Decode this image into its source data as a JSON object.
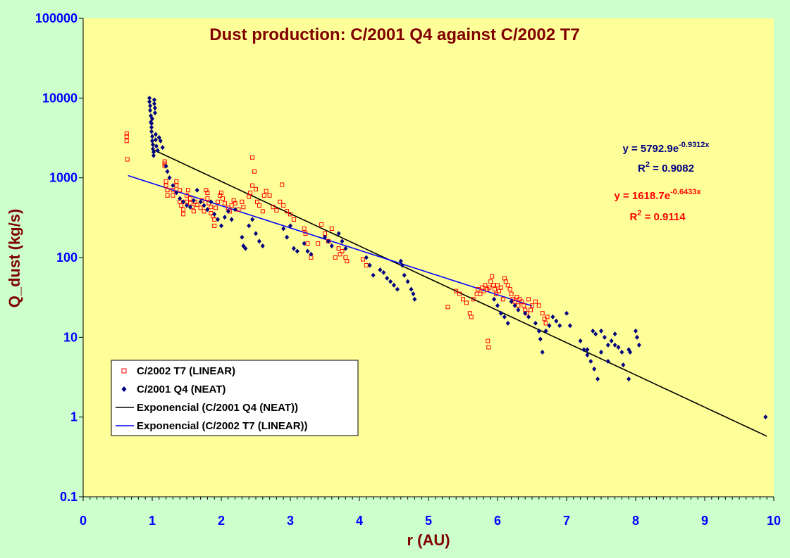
{
  "chart_data": {
    "type": "scatter",
    "title": "Dust production: C/2001 Q4 against C/2002 T7",
    "xlabel": "r (AU)",
    "ylabel": "Q_dust (kg/s)",
    "xlim": [
      0,
      10
    ],
    "ylim": [
      0.1,
      100000
    ],
    "y_scale": "log",
    "grid": false,
    "legend_position": "bottom-left",
    "x_ticks": [
      "0",
      "1",
      "2",
      "3",
      "4",
      "5",
      "6",
      "7",
      "8",
      "9",
      "10"
    ],
    "y_ticks": [
      "0.1",
      "1",
      "10",
      "100",
      "1000",
      "10000",
      "100000"
    ],
    "colors": {
      "background": "#ccffcc",
      "plot_area": "#ffff99",
      "title": "#800000",
      "axis_label": "#800000",
      "tick": "#0000ff",
      "series_t7": "#ff0000",
      "series_q4": "#000080",
      "fit_q4": "#000000",
      "fit_t7": "#0000ff"
    },
    "legend": [
      {
        "label": "C/2002 T7 (LINEAR)",
        "marker": "open-square",
        "color": "#ff0000"
      },
      {
        "label": "C/2001 Q4 (NEAT)",
        "marker": "diamond",
        "color": "#000080"
      },
      {
        "label": "Exponencial (C/2001 Q4 (NEAT))",
        "marker": "line",
        "color": "#000000"
      },
      {
        "label": "Exponencial (C/2002 T7 (LINEAR))",
        "marker": "line",
        "color": "#0000ff"
      }
    ],
    "annotations": [
      {
        "main": "y = 5792.9e",
        "exp": "-0.9312x",
        "r2_prefix": "R",
        "r2_sup": "2",
        "r2_value": " = 0.9082",
        "color": "#000080"
      },
      {
        "main": "y = 1618.7e",
        "exp": "-0.6433x",
        "r2_prefix": "R",
        "r2_sup": "2",
        "r2_value": " = 0.9114",
        "color": "#ff0000"
      }
    ],
    "trendlines": [
      {
        "name": "Exponencial (C/2001 Q4 (NEAT))",
        "a": 5792.9,
        "b": -0.9312,
        "x_range": [
          1.0,
          9.9
        ],
        "color": "#000000"
      },
      {
        "name": "Exponencial (C/2002 T7 (LINEAR))",
        "a": 1618.7,
        "b": -0.6433,
        "x_range": [
          0.65,
          6.5
        ],
        "color": "#0000ff"
      }
    ],
    "series": [
      {
        "name": "C/2002 T7 (LINEAR)",
        "marker": "open-square",
        "color": "#ff0000",
        "points": [
          [
            0.63,
            3600
          ],
          [
            0.63,
            3300
          ],
          [
            0.63,
            2900
          ],
          [
            0.64,
            1700
          ],
          [
            1.18,
            1600
          ],
          [
            1.18,
            1500
          ],
          [
            1.18,
            1400
          ],
          [
            1.2,
            900
          ],
          [
            1.2,
            800
          ],
          [
            1.22,
            700
          ],
          [
            1.22,
            600
          ],
          [
            1.3,
            600
          ],
          [
            1.3,
            700
          ],
          [
            1.35,
            800
          ],
          [
            1.35,
            900
          ],
          [
            1.4,
            700
          ],
          [
            1.4,
            500
          ],
          [
            1.42,
            450
          ],
          [
            1.45,
            400
          ],
          [
            1.45,
            350
          ],
          [
            1.5,
            500
          ],
          [
            1.5,
            600
          ],
          [
            1.52,
            700
          ],
          [
            1.55,
            550
          ],
          [
            1.55,
            480
          ],
          [
            1.58,
            430
          ],
          [
            1.6,
            380
          ],
          [
            1.62,
            500
          ],
          [
            1.65,
            460
          ],
          [
            1.7,
            420
          ],
          [
            1.72,
            520
          ],
          [
            1.75,
            380
          ],
          [
            1.78,
            700
          ],
          [
            1.8,
            650
          ],
          [
            1.8,
            550
          ],
          [
            1.82,
            480
          ],
          [
            1.85,
            430
          ],
          [
            1.85,
            360
          ],
          [
            1.88,
            330
          ],
          [
            1.9,
            300
          ],
          [
            1.9,
            250
          ],
          [
            1.92,
            420
          ],
          [
            1.95,
            500
          ],
          [
            1.98,
            600
          ],
          [
            2.0,
            650
          ],
          [
            2.02,
            550
          ],
          [
            2.05,
            480
          ],
          [
            2.1,
            420
          ],
          [
            2.12,
            380
          ],
          [
            2.15,
            450
          ],
          [
            2.18,
            520
          ],
          [
            2.2,
            480
          ],
          [
            2.25,
            400
          ],
          [
            2.3,
            500
          ],
          [
            2.32,
            430
          ],
          [
            2.4,
            580
          ],
          [
            2.42,
            650
          ],
          [
            2.45,
            800
          ],
          [
            2.45,
            1800
          ],
          [
            2.48,
            1200
          ],
          [
            2.5,
            720
          ],
          [
            2.52,
            500
          ],
          [
            2.55,
            450
          ],
          [
            2.6,
            380
          ],
          [
            2.62,
            600
          ],
          [
            2.65,
            680
          ],
          [
            2.7,
            600
          ],
          [
            2.75,
            430
          ],
          [
            2.8,
            390
          ],
          [
            2.85,
            500
          ],
          [
            2.88,
            820
          ],
          [
            2.9,
            450
          ],
          [
            2.95,
            380
          ],
          [
            3.0,
            350
          ],
          [
            3.05,
            300
          ],
          [
            3.2,
            230
          ],
          [
            3.22,
            200
          ],
          [
            3.25,
            150
          ],
          [
            3.3,
            100
          ],
          [
            3.4,
            150
          ],
          [
            3.45,
            260
          ],
          [
            3.5,
            200
          ],
          [
            3.55,
            160
          ],
          [
            3.6,
            230
          ],
          [
            3.65,
            100
          ],
          [
            3.7,
            130
          ],
          [
            3.72,
            110
          ],
          [
            3.75,
            120
          ],
          [
            3.8,
            100
          ],
          [
            3.82,
            90
          ],
          [
            4.05,
            95
          ],
          [
            4.1,
            80
          ],
          [
            5.28,
            24
          ],
          [
            5.4,
            38
          ],
          [
            5.45,
            35
          ],
          [
            5.5,
            30
          ],
          [
            5.55,
            27
          ],
          [
            5.6,
            20
          ],
          [
            5.62,
            18
          ],
          [
            5.65,
            30
          ],
          [
            5.7,
            35
          ],
          [
            5.72,
            40
          ],
          [
            5.75,
            35
          ],
          [
            5.78,
            42
          ],
          [
            5.8,
            38
          ],
          [
            5.82,
            45
          ],
          [
            5.85,
            40
          ],
          [
            5.86,
            9
          ],
          [
            5.87,
            7.5
          ],
          [
            5.88,
            42
          ],
          [
            5.9,
            50
          ],
          [
            5.92,
            58
          ],
          [
            5.94,
            45
          ],
          [
            5.96,
            40
          ],
          [
            5.98,
            35
          ],
          [
            6.0,
            45
          ],
          [
            6.02,
            38
          ],
          [
            6.05,
            42
          ],
          [
            6.08,
            30
          ],
          [
            6.1,
            55
          ],
          [
            6.12,
            50
          ],
          [
            6.15,
            45
          ],
          [
            6.18,
            40
          ],
          [
            6.2,
            35
          ],
          [
            6.22,
            30
          ],
          [
            6.25,
            28
          ],
          [
            6.28,
            32
          ],
          [
            6.3,
            25
          ],
          [
            6.32,
            30
          ],
          [
            6.35,
            28
          ],
          [
            6.38,
            25
          ],
          [
            6.4,
            22
          ],
          [
            6.42,
            20
          ],
          [
            6.45,
            30
          ],
          [
            6.48,
            22
          ],
          [
            6.5,
            25
          ],
          [
            6.55,
            28
          ],
          [
            6.6,
            25
          ],
          [
            6.65,
            20
          ],
          [
            6.68,
            17
          ],
          [
            6.7,
            15
          ],
          [
            6.72,
            18
          ]
        ]
      },
      {
        "name": "C/2001 Q4 (NEAT)",
        "marker": "diamond",
        "color": "#000080",
        "points": [
          [
            0.96,
            10000
          ],
          [
            0.96,
            9000
          ],
          [
            0.97,
            8000
          ],
          [
            0.97,
            7000
          ],
          [
            0.98,
            6000
          ],
          [
            0.98,
            5000
          ],
          [
            0.99,
            4300
          ],
          [
            0.99,
            3800
          ],
          [
            1.0,
            3300
          ],
          [
            1.0,
            2900
          ],
          [
            1.01,
            2600
          ],
          [
            1.01,
            2300
          ],
          [
            1.02,
            2100
          ],
          [
            1.02,
            1900
          ],
          [
            1.03,
            9500
          ],
          [
            1.03,
            8500
          ],
          [
            1.04,
            7500
          ],
          [
            1.04,
            6500
          ],
          [
            1.0,
            5500
          ],
          [
            0.99,
            4800
          ],
          [
            1.05,
            3500
          ],
          [
            1.05,
            3000
          ],
          [
            1.06,
            2500
          ],
          [
            1.08,
            2200
          ],
          [
            1.1,
            3200
          ],
          [
            1.12,
            2900
          ],
          [
            1.15,
            2400
          ],
          [
            1.2,
            1400
          ],
          [
            1.22,
            1200
          ],
          [
            1.25,
            1000
          ],
          [
            1.3,
            800
          ],
          [
            1.35,
            650
          ],
          [
            1.4,
            550
          ],
          [
            1.45,
            500
          ],
          [
            1.5,
            450
          ],
          [
            1.55,
            430
          ],
          [
            1.6,
            520
          ],
          [
            1.65,
            700
          ],
          [
            1.7,
            500
          ],
          [
            1.75,
            450
          ],
          [
            1.8,
            400
          ],
          [
            1.85,
            500
          ],
          [
            1.9,
            350
          ],
          [
            1.95,
            300
          ],
          [
            2.0,
            250
          ],
          [
            2.05,
            320
          ],
          [
            2.1,
            380
          ],
          [
            2.15,
            300
          ],
          [
            2.2,
            400
          ],
          [
            2.3,
            180
          ],
          [
            2.32,
            140
          ],
          [
            2.35,
            130
          ],
          [
            2.4,
            250
          ],
          [
            2.45,
            300
          ],
          [
            2.5,
            200
          ],
          [
            2.55,
            160
          ],
          [
            2.6,
            140
          ],
          [
            2.9,
            230
          ],
          [
            2.95,
            180
          ],
          [
            3.0,
            250
          ],
          [
            3.05,
            130
          ],
          [
            3.1,
            120
          ],
          [
            3.2,
            150
          ],
          [
            3.25,
            120
          ],
          [
            3.3,
            110
          ],
          [
            3.5,
            180
          ],
          [
            3.55,
            160
          ],
          [
            3.6,
            140
          ],
          [
            3.7,
            200
          ],
          [
            3.75,
            160
          ],
          [
            3.8,
            130
          ],
          [
            4.1,
            100
          ],
          [
            4.15,
            80
          ],
          [
            4.2,
            60
          ],
          [
            4.3,
            70
          ],
          [
            4.35,
            65
          ],
          [
            4.4,
            55
          ],
          [
            4.45,
            50
          ],
          [
            4.5,
            45
          ],
          [
            4.55,
            40
          ],
          [
            4.6,
            90
          ],
          [
            4.62,
            80
          ],
          [
            4.65,
            60
          ],
          [
            4.7,
            50
          ],
          [
            4.75,
            40
          ],
          [
            4.78,
            35
          ],
          [
            4.8,
            30
          ],
          [
            5.95,
            30
          ],
          [
            6.0,
            25
          ],
          [
            6.05,
            20
          ],
          [
            6.1,
            18
          ],
          [
            6.15,
            15
          ],
          [
            6.2,
            28
          ],
          [
            6.25,
            25
          ],
          [
            6.3,
            22
          ],
          [
            6.4,
            20
          ],
          [
            6.45,
            18
          ],
          [
            6.55,
            15
          ],
          [
            6.6,
            12
          ],
          [
            6.62,
            9.5
          ],
          [
            6.65,
            6.5
          ],
          [
            6.7,
            12
          ],
          [
            6.75,
            14
          ],
          [
            6.8,
            18
          ],
          [
            6.85,
            16
          ],
          [
            6.9,
            14
          ],
          [
            7.0,
            20
          ],
          [
            7.05,
            14
          ],
          [
            7.2,
            9
          ],
          [
            7.25,
            7
          ],
          [
            7.3,
            6
          ],
          [
            7.35,
            5
          ],
          [
            7.4,
            4
          ],
          [
            7.45,
            3
          ],
          [
            7.5,
            12
          ],
          [
            7.55,
            10
          ],
          [
            7.6,
            8
          ],
          [
            7.65,
            9
          ],
          [
            7.7,
            11
          ],
          [
            7.75,
            7.5
          ],
          [
            7.8,
            6.5
          ],
          [
            7.9,
            7
          ],
          [
            7.92,
            6.5
          ],
          [
            8.0,
            12
          ],
          [
            8.02,
            10
          ],
          [
            8.05,
            8
          ],
          [
            7.3,
            7
          ],
          [
            7.38,
            12
          ],
          [
            7.42,
            11
          ],
          [
            7.5,
            6.5
          ],
          [
            7.6,
            5
          ],
          [
            7.7,
            8
          ],
          [
            7.82,
            4.5
          ],
          [
            7.9,
            3
          ],
          [
            9.88,
            1.0
          ]
        ]
      }
    ]
  }
}
